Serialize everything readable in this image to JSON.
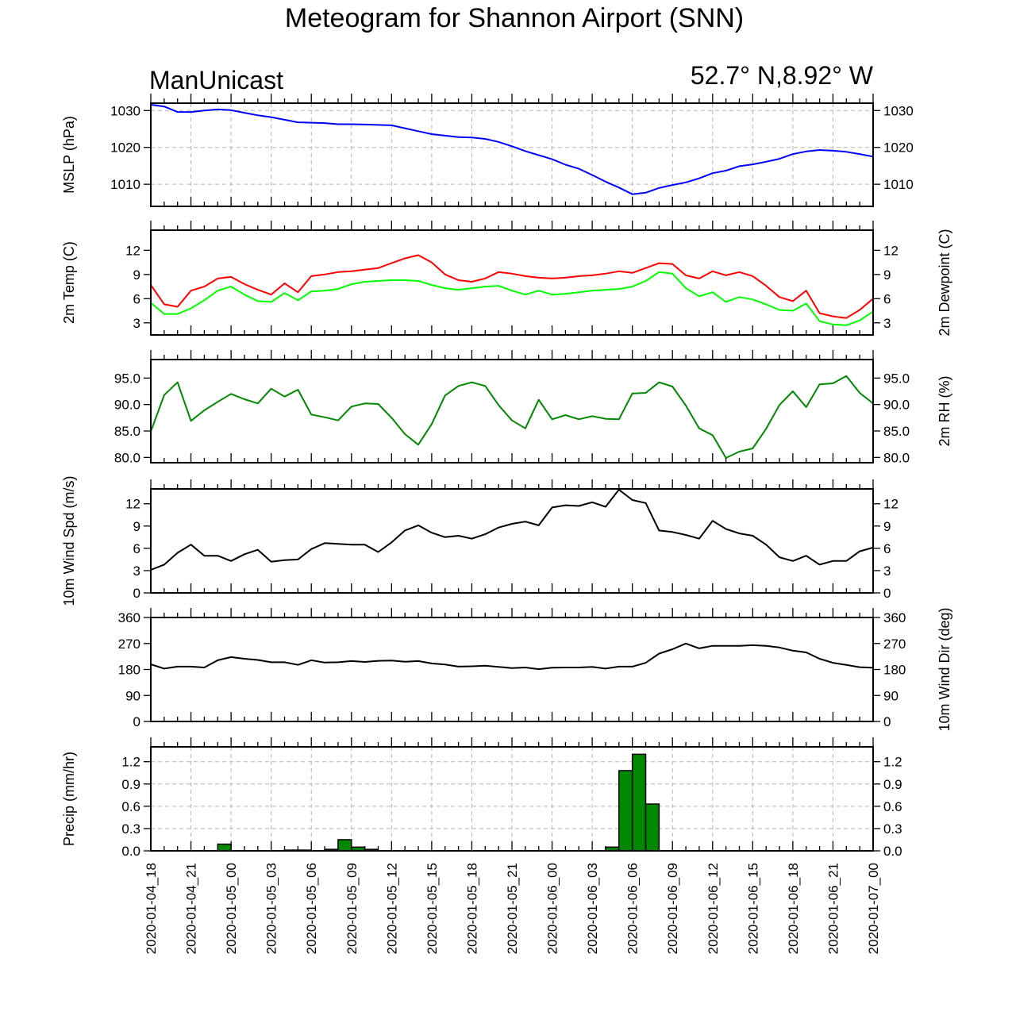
{
  "header": {
    "title": "Meteogram for Shannon Airport (SNN)",
    "model": "ManUnicast",
    "location": "52.7° N,8.92° W"
  },
  "time_labels": [
    "2020-01-04_18",
    "2020-01-04_21",
    "2020-01-05_00",
    "2020-01-05_03",
    "2020-01-05_06",
    "2020-01-05_09",
    "2020-01-05_12",
    "2020-01-05_15",
    "2020-01-05_18",
    "2020-01-05_21",
    "2020-01-06_00",
    "2020-01-06_03",
    "2020-01-06_06",
    "2020-01-06_09",
    "2020-01-06_12",
    "2020-01-06_15",
    "2020-01-06_18",
    "2020-01-06_21",
    "2020-01-07_00"
  ],
  "chart_data": [
    {
      "id": "mslp",
      "type": "line",
      "ylabel": "MSLP (hPa)",
      "ylabel_right": "",
      "ylim": [
        1004,
        1032
      ],
      "yticks": [
        "1010",
        "1020",
        "1030"
      ],
      "grid": true,
      "x_range": [
        0,
        54
      ],
      "series": [
        {
          "color": "#0000ff",
          "x": [
            0,
            1,
            2,
            3,
            4,
            5,
            6,
            7,
            8,
            9,
            10,
            11,
            12,
            13,
            14,
            15,
            16,
            17,
            18,
            19,
            20,
            21,
            22,
            23,
            24,
            25,
            26,
            27,
            28,
            29,
            30,
            31,
            32,
            33,
            34,
            35,
            36,
            37,
            38,
            39,
            40,
            41,
            42,
            43,
            44,
            45,
            46,
            47,
            48,
            49,
            50,
            51,
            52,
            53,
            54
          ],
          "values": [
            1031.6,
            1031.1,
            1029.6,
            1029.6,
            1030.0,
            1030.3,
            1030.1,
            1029.4,
            1028.7,
            1028.2,
            1027.5,
            1026.8,
            1026.7,
            1026.6,
            1026.3,
            1026.3,
            1026.2,
            1026.1,
            1026.0,
            1025.2,
            1024.4,
            1023.6,
            1023.2,
            1022.8,
            1022.7,
            1022.3,
            1021.5,
            1020.3,
            1019.0,
            1017.9,
            1016.8,
            1015.3,
            1014.2,
            1012.5,
            1010.7,
            1009.1,
            1007.3,
            1007.7,
            1009.0,
            1009.8,
            1010.5,
            1011.6,
            1013.0,
            1013.7,
            1014.9,
            1015.4,
            1016.1,
            1016.9,
            1018.2,
            1018.9,
            1019.3,
            1019.1,
            1018.8,
            1018.2,
            1017.5
          ]
        }
      ]
    },
    {
      "id": "temp",
      "type": "line",
      "ylabel": "2m Temp (C)",
      "ylabel_right": "2m Dewpoint (C)",
      "ylim": [
        1.5,
        14.5
      ],
      "yticks": [
        "3",
        "6",
        "9",
        "12"
      ],
      "grid": false,
      "x_range": [
        0,
        54
      ],
      "series": [
        {
          "color": "#ff0000",
          "x": [
            0,
            1,
            2,
            3,
            4,
            5,
            6,
            7,
            8,
            9,
            10,
            11,
            12,
            13,
            14,
            15,
            16,
            17,
            18,
            19,
            20,
            21,
            22,
            23,
            24,
            25,
            26,
            27,
            28,
            29,
            30,
            31,
            32,
            33,
            34,
            35,
            36,
            37,
            38,
            39,
            40,
            41,
            42,
            43,
            44,
            45,
            46,
            47,
            48,
            49,
            50,
            51,
            52,
            53,
            54
          ],
          "values": [
            7.7,
            5.3,
            5.0,
            7.0,
            7.5,
            8.5,
            8.7,
            7.8,
            7.1,
            6.5,
            7.9,
            6.8,
            8.8,
            9.0,
            9.3,
            9.4,
            9.6,
            9.8,
            10.4,
            11.0,
            11.4,
            10.5,
            9.0,
            8.3,
            8.1,
            8.5,
            9.3,
            9.1,
            8.8,
            8.6,
            8.5,
            8.6,
            8.8,
            8.9,
            9.1,
            9.4,
            9.2,
            9.8,
            10.4,
            10.3,
            8.9,
            8.5,
            9.4,
            8.9,
            9.3,
            8.8,
            7.6,
            6.2,
            5.7,
            7.0,
            4.2,
            3.8,
            3.6,
            4.6,
            6.0
          ]
        },
        {
          "color": "#00ff00",
          "x": [
            0,
            1,
            2,
            3,
            4,
            5,
            6,
            7,
            8,
            9,
            10,
            11,
            12,
            13,
            14,
            15,
            16,
            17,
            18,
            19,
            20,
            21,
            22,
            23,
            24,
            25,
            26,
            27,
            28,
            29,
            30,
            31,
            32,
            33,
            34,
            35,
            36,
            37,
            38,
            39,
            40,
            41,
            42,
            43,
            44,
            45,
            46,
            47,
            48,
            49,
            50,
            51,
            52,
            53,
            54
          ],
          "values": [
            5.5,
            4.1,
            4.1,
            4.8,
            5.8,
            7.0,
            7.5,
            6.5,
            5.7,
            5.6,
            6.7,
            5.8,
            6.9,
            7.0,
            7.2,
            7.8,
            8.1,
            8.2,
            8.3,
            8.3,
            8.2,
            7.7,
            7.3,
            7.1,
            7.3,
            7.5,
            7.6,
            7.0,
            6.5,
            7.0,
            6.5,
            6.6,
            6.8,
            7.0,
            7.1,
            7.2,
            7.5,
            8.2,
            9.3,
            9.1,
            7.3,
            6.3,
            6.8,
            5.6,
            6.2,
            5.9,
            5.3,
            4.6,
            4.5,
            5.4,
            3.2,
            2.8,
            2.7,
            3.3,
            4.4
          ]
        }
      ]
    },
    {
      "id": "rh",
      "type": "line",
      "ylabel": "",
      "ylabel_right": "2m RH (%)",
      "ylim": [
        79,
        98.5
      ],
      "yticks": [
        "80.0",
        "85.0",
        "90.0",
        "95.0"
      ],
      "grid": false,
      "x_range": [
        0,
        54
      ],
      "series": [
        {
          "color": "#008800",
          "x": [
            0,
            1,
            2,
            3,
            4,
            5,
            6,
            7,
            8,
            9,
            10,
            11,
            12,
            13,
            14,
            15,
            16,
            17,
            18,
            19,
            20,
            21,
            22,
            23,
            24,
            25,
            26,
            27,
            28,
            29,
            30,
            31,
            32,
            33,
            34,
            35,
            36,
            37,
            38,
            39,
            40,
            41,
            42,
            43,
            44,
            45,
            46,
            47,
            48,
            49,
            50,
            51,
            52,
            53,
            54
          ],
          "values": [
            84.9,
            91.8,
            94.2,
            86.9,
            88.9,
            90.5,
            92.0,
            91.0,
            90.2,
            93.0,
            91.5,
            92.8,
            88.1,
            87.6,
            87.0,
            89.6,
            90.2,
            90.1,
            87.5,
            84.4,
            82.4,
            86.3,
            91.7,
            93.5,
            94.2,
            93.5,
            89.9,
            87.0,
            85.5,
            90.9,
            87.2,
            88.0,
            87.2,
            87.8,
            87.3,
            87.2,
            92.1,
            92.2,
            94.2,
            93.4,
            89.8,
            85.5,
            84.2,
            79.9,
            81.1,
            81.7,
            85.4,
            89.9,
            92.5,
            89.5,
            93.8,
            94.0,
            95.4,
            92.2,
            90.2
          ]
        }
      ]
    },
    {
      "id": "wspd",
      "type": "line",
      "ylabel": "10m Wind Spd (m/s)",
      "ylabel_right": "",
      "ylim": [
        0,
        14
      ],
      "yticks": [
        "0",
        "3",
        "6",
        "9",
        "12"
      ],
      "grid": false,
      "x_range": [
        0,
        54
      ],
      "series": [
        {
          "color": "#000000",
          "x": [
            0,
            1,
            2,
            3,
            4,
            5,
            6,
            7,
            8,
            9,
            10,
            11,
            12,
            13,
            14,
            15,
            16,
            17,
            18,
            19,
            20,
            21,
            22,
            23,
            24,
            25,
            26,
            27,
            28,
            29,
            30,
            31,
            32,
            33,
            34,
            35,
            36,
            37,
            38,
            39,
            40,
            41,
            42,
            43,
            44,
            45,
            46,
            47,
            48,
            49,
            50,
            51,
            52,
            53,
            54
          ],
          "values": [
            3.1,
            3.8,
            5.4,
            6.5,
            5.0,
            5.0,
            4.3,
            5.2,
            5.8,
            4.2,
            4.4,
            4.5,
            5.9,
            6.7,
            6.6,
            6.5,
            6.5,
            5.5,
            6.8,
            8.4,
            9.1,
            8.1,
            7.5,
            7.7,
            7.3,
            7.9,
            8.8,
            9.3,
            9.6,
            9.1,
            11.5,
            11.8,
            11.7,
            12.2,
            11.6,
            13.9,
            12.5,
            12.1,
            8.4,
            8.2,
            7.8,
            7.3,
            9.7,
            8.6,
            8.0,
            7.7,
            6.5,
            4.8,
            4.3,
            5.0,
            3.8,
            4.3,
            4.3,
            5.6,
            6.1
          ]
        }
      ]
    },
    {
      "id": "wdir",
      "type": "line",
      "ylabel": "",
      "ylabel_right": "10m Wind Dir (deg)",
      "ylim": [
        0,
        360
      ],
      "yticks": [
        "0",
        "90",
        "180",
        "270",
        "360"
      ],
      "grid": false,
      "x_range": [
        0,
        54
      ],
      "series": [
        {
          "color": "#000000",
          "x": [
            0,
            1,
            2,
            3,
            4,
            5,
            6,
            7,
            8,
            9,
            10,
            11,
            12,
            13,
            14,
            15,
            16,
            17,
            18,
            19,
            20,
            21,
            22,
            23,
            24,
            25,
            26,
            27,
            28,
            29,
            30,
            31,
            32,
            33,
            34,
            35,
            36,
            37,
            38,
            39,
            40,
            41,
            42,
            43,
            44,
            45,
            46,
            47,
            48,
            49,
            50,
            51,
            52,
            53,
            54
          ],
          "values": [
            198,
            183,
            190,
            190,
            187,
            212,
            223,
            217,
            213,
            205,
            205,
            196,
            212,
            204,
            205,
            209,
            206,
            210,
            211,
            207,
            209,
            201,
            197,
            190,
            191,
            193,
            189,
            185,
            187,
            181,
            186,
            187,
            187,
            189,
            183,
            190,
            190,
            203,
            235,
            250,
            270,
            253,
            262,
            262,
            262,
            264,
            262,
            256,
            245,
            239,
            217,
            203,
            196,
            188,
            186
          ]
        }
      ]
    },
    {
      "id": "precip",
      "type": "bar",
      "ylabel": "Precip (mm/hr)",
      "ylabel_right": "",
      "ylim": [
        0,
        1.4
      ],
      "yticks": [
        "0.0",
        "0.3",
        "0.6",
        "0.9",
        "1.2"
      ],
      "grid": true,
      "x_range": [
        0,
        54
      ],
      "bars": {
        "color": "#008800",
        "x": [
          5.5,
          10.5,
          11.5,
          13.5,
          14.5,
          15.5,
          16.5,
          34.5,
          35.5,
          36.5,
          37.5
        ],
        "values": [
          0.09,
          0.01,
          0.01,
          0.02,
          0.15,
          0.05,
          0.02,
          0.05,
          1.08,
          1.3,
          0.63
        ]
      }
    }
  ]
}
